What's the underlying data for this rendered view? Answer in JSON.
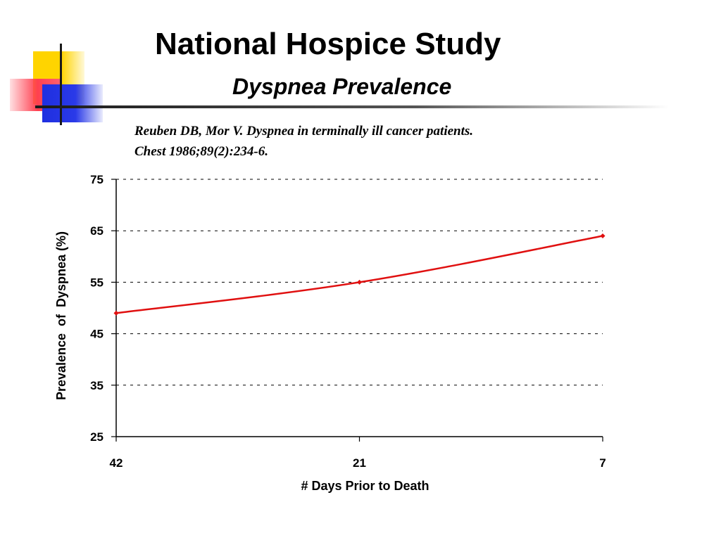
{
  "slide": {
    "title": "National Hospice Study",
    "subtitle": "Dyspnea Prevalence",
    "citation_line1": "Reuben DB, Mor V.  Dyspnea in terminally ill cancer patients.",
    "citation_line2": "Chest 1986;89(2):234-6."
  },
  "colors": {
    "series": "#e01010",
    "axis": "#000000",
    "grid": "#000000"
  },
  "chart_data": {
    "type": "line",
    "title": "",
    "xlabel": "# Days Prior to Death",
    "ylabel": "Prevalence  of  Dyspnea (%)",
    "x": [
      42,
      21,
      7
    ],
    "x_tick_labels": [
      "42",
      "21",
      "7"
    ],
    "series": [
      {
        "values": [
          49,
          55,
          64
        ]
      }
    ],
    "ylim": [
      25,
      75
    ],
    "y_ticks": [
      25,
      35,
      45,
      55,
      65,
      75
    ],
    "grid": "horizontal-dashed",
    "legend": "none"
  }
}
